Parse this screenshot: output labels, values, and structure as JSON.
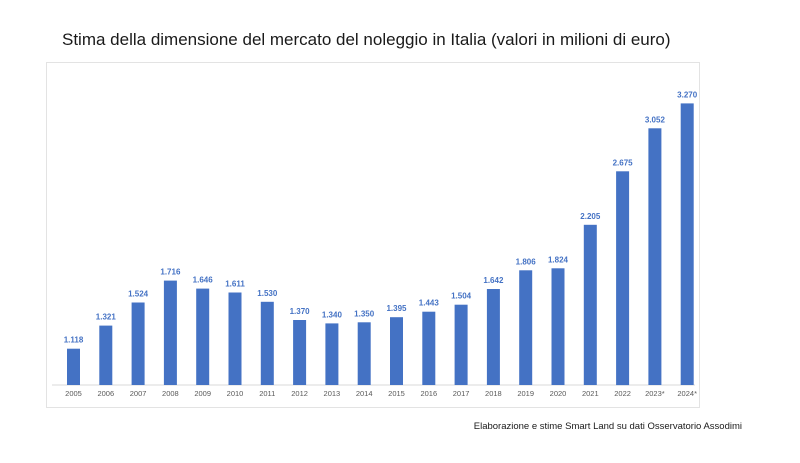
{
  "title": "Stima della dimensione del mercato del noleggio in Italia (valori in milioni di euro)",
  "source": "Elaborazione e stime Smart Land su dati Osservatorio Assodimi",
  "chart_data": {
    "type": "bar",
    "categories": [
      "2005",
      "2006",
      "2007",
      "2008",
      "2009",
      "2010",
      "2011",
      "2012",
      "2013",
      "2014",
      "2015",
      "2016",
      "2017",
      "2018",
      "2019",
      "2020",
      "2021",
      "2022",
      "2023*",
      "2024*"
    ],
    "values": [
      1118,
      1321,
      1524,
      1716,
      1646,
      1611,
      1530,
      1370,
      1340,
      1350,
      1395,
      1443,
      1504,
      1642,
      1806,
      1824,
      2205,
      2675,
      3052,
      3270
    ],
    "value_labels": [
      "1.118",
      "1.321",
      "1.524",
      "1.716",
      "1.646",
      "1.611",
      "1.530",
      "1.370",
      "1.340",
      "1.350",
      "1.395",
      "1.443",
      "1.504",
      "1.642",
      "1.806",
      "1.824",
      "2.205",
      "2.675",
      "3.052",
      "3.270"
    ],
    "title": "Stima della dimensione del mercato del noleggio in Italia (valori in milioni di euro)",
    "xlabel": "",
    "ylabel": "",
    "ylim": [
      800,
      3300
    ],
    "grid": false,
    "bar_color": "#4472c4",
    "label_color": "#4472c4"
  }
}
